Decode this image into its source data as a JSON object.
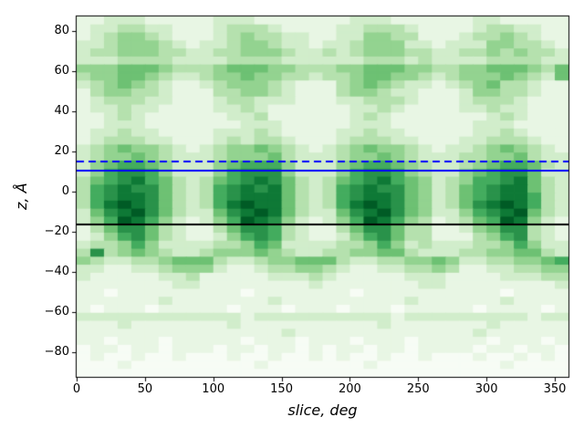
{
  "chart_data": {
    "type": "heatmap",
    "title": "",
    "xlabel": "slice, deg",
    "ylabel": "z, Å",
    "xlim": [
      0,
      360
    ],
    "ylim": [
      -92.5,
      87.5
    ],
    "x_ticks": [
      0,
      50,
      100,
      150,
      200,
      250,
      300,
      350
    ],
    "x_tick_labels": [
      "0",
      "50",
      "100",
      "150",
      "200",
      "250",
      "300",
      "350"
    ],
    "y_ticks": [
      80,
      60,
      40,
      20,
      0,
      -20,
      -40,
      -60,
      -80
    ],
    "y_tick_labels": [
      "80",
      "60",
      "40",
      "20",
      "0",
      "−20",
      "−40",
      "−60",
      "−80"
    ],
    "grid_on": false,
    "legend": "none",
    "colormap": "Greens",
    "colormap_stops": [
      "#f7fcf5",
      "#e5f5e0",
      "#c7e9c0",
      "#a1d99b",
      "#74c476",
      "#41ab5d",
      "#238b45",
      "#006d2c",
      "#00441b"
    ],
    "grid": {
      "cols": 36,
      "rows": 45,
      "x_step_deg": 10,
      "z_step_angstrom": 4,
      "intensity_scale": "0 (lightest) to 9 (darkest)"
    },
    "intensity_rows": [
      "112221111122211111112221111112211111",
      "122332211123332111122333211112332211",
      "123443211123433221122443311123343211",
      "223444321223443221223444221222443321",
      "233444332233444322323444332233434332",
      "222333322223333222222333232222333322",
      "444555433345554433344555443344555435",
      "344554322344544332334554432344454325",
      "234543211234443211134543221234533211",
      "134433211133443211134432211124433211",
      "123332211123322211122333211123332111",
      "122322111122321111112232111122322111",
      "112321111112231111112321111111232111",
      "112221111111222111112221111112221111",
      "122322111122232111122322111112232111",
      "123332211123233211123332211122333211",
      "234544321234454321234544321223454321",
      "234454322234445322234454322233445322",
      "245665422245666422245665432234566532",
      "246776422246777422246776432245677522",
      "356786532356787532356786542346678532",
      "367877532367878532367877542356788532",
      "367887532367888532367887542356788632",
      "368987532368988532368987542357898632",
      "257897532257898532257897542246789532",
      "246986421246987421246986431235698421",
      "135775321135776321135775331124577321",
      "124675321124676321124675331113467321",
      "233464222233465222233464232223346422",
      "373454322344454322334455322233445532",
      "432233455532234455532233445422334456",
      "221122344421123344321122334311223344",
      "211111223111112223211111222111122233",
      "111111122111111112111111122111111112",
      "110111111111011111110111111111101111",
      "111111211111112111111111211111121111",
      "101110111110111011101110111110111101",
      "222222222222122222222221222222222122",
      "111211111112111111111121111111211111",
      "111111111111111211111111111112111111",
      "110111011111011101110111011111011101",
      "011011011101101101011011011110110110",
      "010010010001001001010010010001001010",
      "000100000000010000000100000000010000",
      "000000000000000000000000000000000000"
    ],
    "overlay_lines": [
      {
        "name": "upper-dashed-blue-line",
        "z": 15,
        "color": "#0000ff",
        "style": "dashed",
        "width": 2
      },
      {
        "name": "upper-solid-blue-line",
        "z": 10.5,
        "color": "#0000ff",
        "style": "solid",
        "width": 2
      },
      {
        "name": "lower-solid-black-line",
        "z": -16.5,
        "color": "#000000",
        "style": "solid",
        "width": 2
      }
    ],
    "axes_color": "#000000",
    "background": "#ffffff"
  }
}
